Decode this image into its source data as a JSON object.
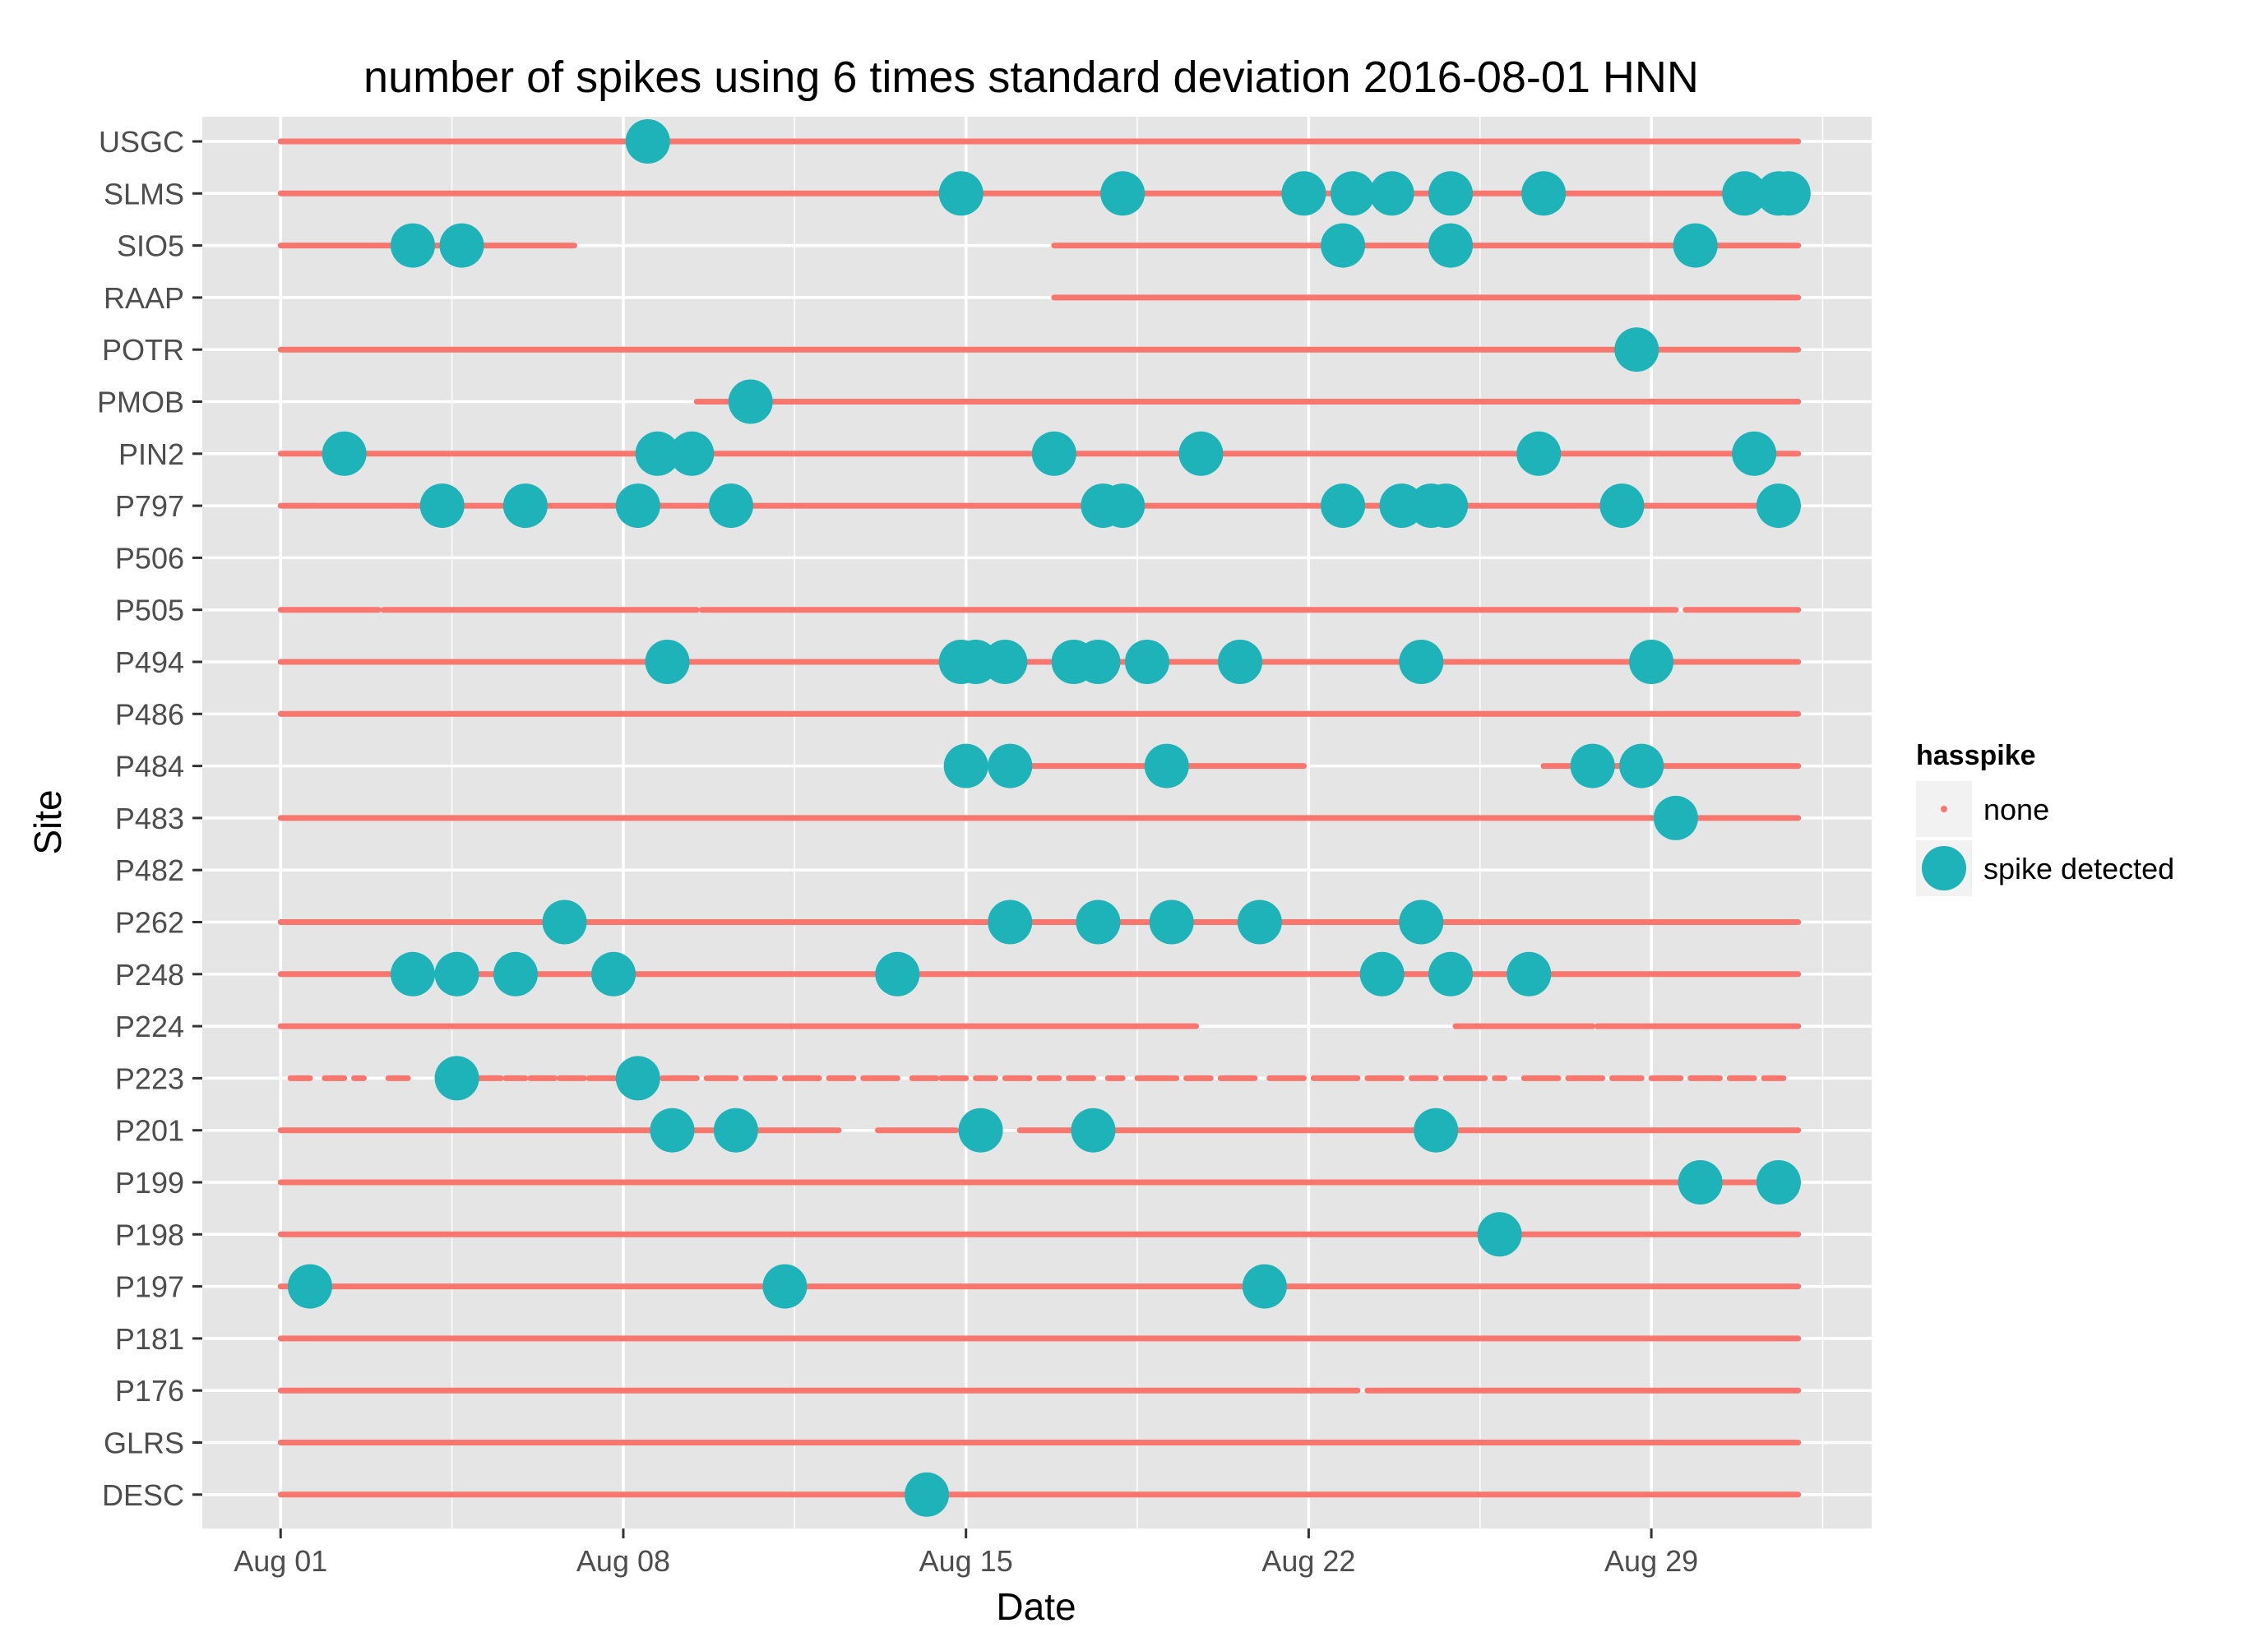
{
  "chart_data": {
    "type": "scatter",
    "title": "number of spikes using  6 times standard deviation 2016-08-01 HNN",
    "xlabel": "Date",
    "ylabel": "Site",
    "xlim_days": [
      -1.6,
      32.5
    ],
    "x_ticks": [
      {
        "day": 0,
        "label": "Aug 01"
      },
      {
        "day": 7,
        "label": "Aug 08"
      },
      {
        "day": 14,
        "label": "Aug 15"
      },
      {
        "day": 21,
        "label": "Aug 22"
      },
      {
        "day": 28,
        "label": "Aug 29"
      }
    ],
    "sites": [
      "USGC",
      "SLMS",
      "SIO5",
      "RAAP",
      "POTR",
      "PMOB",
      "PIN2",
      "P797",
      "P506",
      "P505",
      "P494",
      "P486",
      "P484",
      "P483",
      "P482",
      "P262",
      "P248",
      "P224",
      "P223",
      "P201",
      "P199",
      "P198",
      "P197",
      "P181",
      "P176",
      "GLRS",
      "DESC"
    ],
    "legend": {
      "title": "hasspike",
      "entries": [
        {
          "key": "none",
          "label": "none",
          "color": "#F8766D"
        },
        {
          "key": "spike",
          "label": "spike detected",
          "color": "#1EB3B8"
        }
      ]
    },
    "colors": {
      "none": "#F8766D",
      "spike": "#1EB3B8",
      "panel": "#E5E5E5",
      "grid": "#FFFFFF"
    },
    "no_spike_segments_days": {
      "USGC": [
        [
          0,
          31
        ]
      ],
      "SLMS": [
        [
          0,
          31
        ]
      ],
      "SIO5": [
        [
          0,
          6
        ],
        [
          15.8,
          31
        ]
      ],
      "RAAP": [
        [
          15.8,
          31
        ]
      ],
      "POTR": [
        [
          0,
          31
        ]
      ],
      "PMOB": [
        [
          8.5,
          31
        ]
      ],
      "PIN2": [
        [
          0,
          31
        ]
      ],
      "P797": [
        [
          0,
          31
        ]
      ],
      "P506": [],
      "P505": [
        [
          0,
          2
        ],
        [
          2.1,
          8.5
        ],
        [
          8.6,
          28.5
        ],
        [
          28.7,
          31
        ]
      ],
      "P494": [
        [
          0,
          31
        ]
      ],
      "P486": [
        [
          0,
          31
        ]
      ],
      "P484": [
        [
          13.8,
          20.9
        ],
        [
          25.8,
          31
        ]
      ],
      "P483": [
        [
          0,
          31
        ]
      ],
      "P482": [],
      "P262": [
        [
          0,
          31
        ]
      ],
      "P248": [
        [
          0,
          31
        ]
      ],
      "P224": [
        [
          0,
          18.7
        ],
        [
          24,
          26.8
        ],
        [
          26.9,
          31
        ]
      ],
      "P223": [
        [
          0.2,
          0.6
        ],
        [
          0.9,
          1.3
        ],
        [
          1.5,
          1.7
        ],
        [
          2.2,
          2.6
        ],
        [
          3.8,
          4.5
        ],
        [
          4.6,
          5.0
        ],
        [
          5.1,
          5.6
        ],
        [
          5.7,
          6.2
        ],
        [
          6.3,
          7.0
        ],
        [
          7.2,
          7.6
        ],
        [
          7.8,
          8.5
        ],
        [
          8.7,
          9.3
        ],
        [
          9.5,
          10.1
        ],
        [
          10.3,
          11.0
        ],
        [
          11.2,
          11.7
        ],
        [
          11.9,
          12.6
        ],
        [
          12.9,
          13.4
        ],
        [
          13.5,
          14.0
        ],
        [
          14.2,
          14.6
        ],
        [
          14.8,
          15.3
        ],
        [
          15.5,
          15.9
        ],
        [
          16.1,
          16.6
        ],
        [
          16.9,
          17.2
        ],
        [
          17.5,
          18.3
        ],
        [
          18.5,
          19.0
        ],
        [
          19.2,
          19.9
        ],
        [
          20.2,
          20.9
        ],
        [
          21.1,
          22.0
        ],
        [
          22.2,
          22.9
        ],
        [
          23.1,
          23.6
        ],
        [
          23.8,
          24.6
        ],
        [
          24.8,
          25.0
        ],
        [
          25.4,
          26.1
        ],
        [
          26.3,
          27.0
        ],
        [
          27.2,
          27.8
        ],
        [
          28.0,
          28.6
        ],
        [
          28.8,
          29.4
        ],
        [
          29.6,
          30.1
        ],
        [
          30.3,
          30.7
        ]
      ],
      "P201": [
        [
          0,
          11.4
        ],
        [
          12.2,
          13.8
        ],
        [
          15.1,
          31
        ]
      ],
      "P199": [
        [
          0,
          31
        ]
      ],
      "P198": [
        [
          0,
          31
        ]
      ],
      "P197": [
        [
          0,
          31
        ]
      ],
      "P181": [
        [
          0,
          31
        ]
      ],
      "P176": [
        [
          0,
          22
        ],
        [
          22.2,
          31
        ]
      ],
      "GLRS": [
        [
          0,
          31
        ]
      ],
      "DESC": [
        [
          0,
          31
        ]
      ]
    },
    "spikes_days": {
      "USGC": [
        7.5
      ],
      "SLMS": [
        13.9,
        17.2,
        20.9,
        21.9,
        22.7,
        23.9,
        25.8,
        29.9,
        30.6,
        30.8
      ],
      "SIO5": [
        2.7,
        3.7,
        21.7,
        23.9,
        28.9
      ],
      "RAAP": [],
      "POTR": [
        27.7
      ],
      "PMOB": [
        9.6
      ],
      "PIN2": [
        1.3,
        7.7,
        8.4,
        15.8,
        18.8,
        25.7,
        30.1
      ],
      "P797": [
        3.3,
        5.0,
        7.3,
        9.2,
        16.8,
        17.2,
        21.7,
        22.9,
        23.5,
        23.8,
        27.4,
        30.6
      ],
      "P506": [],
      "P505": [],
      "P494": [
        7.9,
        13.9,
        14.2,
        14.8,
        16.2,
        16.7,
        17.7,
        19.6,
        23.3,
        28.0
      ],
      "P486": [],
      "P484": [
        14.0,
        14.9,
        18.1,
        26.8,
        27.8
      ],
      "P483": [
        28.5
      ],
      "P482": [],
      "P262": [
        5.8,
        14.9,
        16.7,
        18.2,
        20.0,
        23.3
      ],
      "P248": [
        2.7,
        3.6,
        4.8,
        6.8,
        12.6,
        22.5,
        23.9,
        25.5
      ],
      "P224": [],
      "P223": [
        3.6,
        7.3
      ],
      "P201": [
        8.0,
        9.3,
        14.3,
        16.6,
        23.6
      ],
      "P199": [
        29.0,
        30.6
      ],
      "P198": [
        24.9
      ],
      "P197": [
        0.6,
        10.3,
        20.1
      ],
      "P181": [],
      "P176": [],
      "GLRS": [],
      "DESC": [
        13.2
      ]
    }
  }
}
